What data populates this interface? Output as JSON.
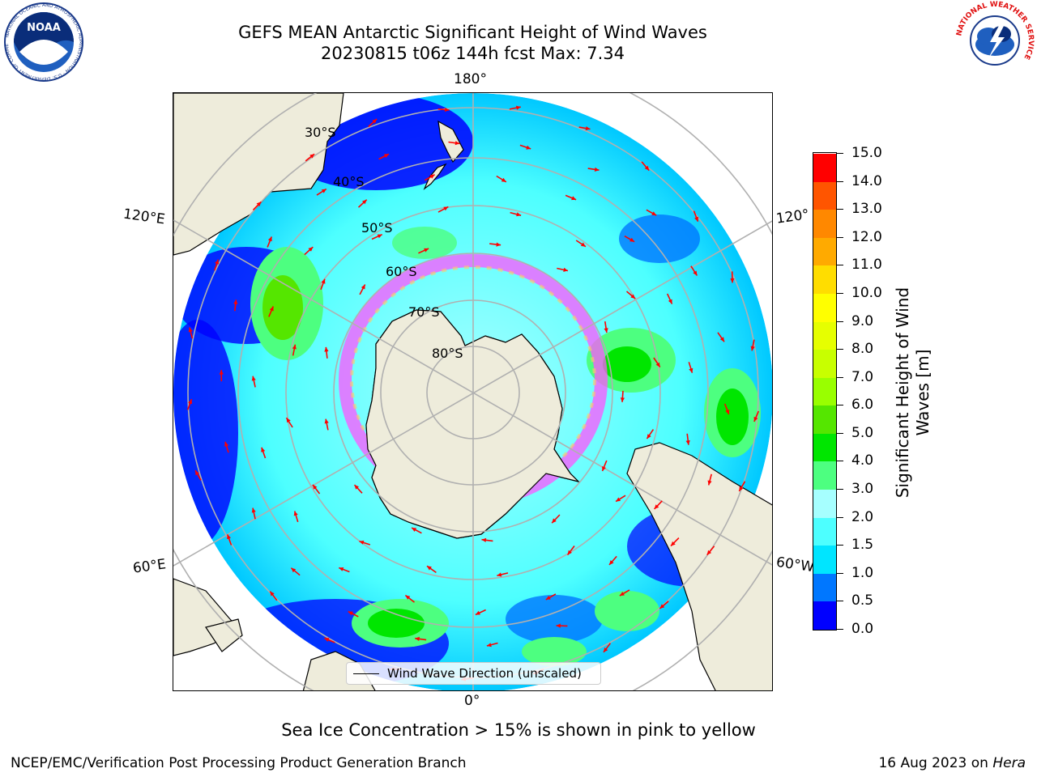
{
  "title_line1": "GEFS MEAN Antarctic Significant Height of Wind Waves",
  "title_line2": "20230815 t06z 144h fcst   Max: 7.34",
  "map": {
    "lon_labels": {
      "top": "180°",
      "bottom": "0°",
      "upper_left": "120°E",
      "upper_right": "120°",
      "lower_left": "60°E",
      "lower_right": "60°W"
    },
    "lat_labels": [
      "30°S",
      "40°S",
      "50°S",
      "60°S",
      "70°S",
      "80°S"
    ],
    "legend_label": "Wind Wave Direction (unscaled)",
    "land_color": "#eeecdb",
    "arrow_color": "#ff0000"
  },
  "colorbar": {
    "label_line1": "Significant Height of Wind",
    "label_line2": "Waves [m]",
    "ticks": [
      "15.0",
      "14.0",
      "13.0",
      "12.0",
      "11.0",
      "10.0",
      "9.0",
      "8.0",
      "7.0",
      "6.0",
      "5.0",
      "4.0",
      "3.0",
      "2.0",
      "1.5",
      "1.0",
      "0.5",
      "0.0"
    ],
    "colors_bottom_to_top": [
      "#0000ff",
      "#0077ff",
      "#00e5ff",
      "#4dffff",
      "#a6ffff",
      "#4dff80",
      "#00e600",
      "#55e600",
      "#99ff00",
      "#c8ff00",
      "#e6ff00",
      "#ffff00",
      "#ffdd00",
      "#ffaa00",
      "#ff8800",
      "#ff5500",
      "#ff0000"
    ]
  },
  "subtitle": "Sea Ice Concentration > 15% is shown in pink to yellow",
  "footer_left": "NCEP/EMC/Verification Post Processing Product Generation Branch",
  "footer_date": "16 Aug 2023 on ",
  "footer_machine": "Hera",
  "logos": {
    "left": "NOAA",
    "right_ring": "NATIONAL WEATHER SERVICE",
    "left_ring": "NATIONAL OCEANIC AND ATMOSPHERIC ADMINISTRATION · U.S. DEPARTMENT OF COMMERCE"
  }
}
